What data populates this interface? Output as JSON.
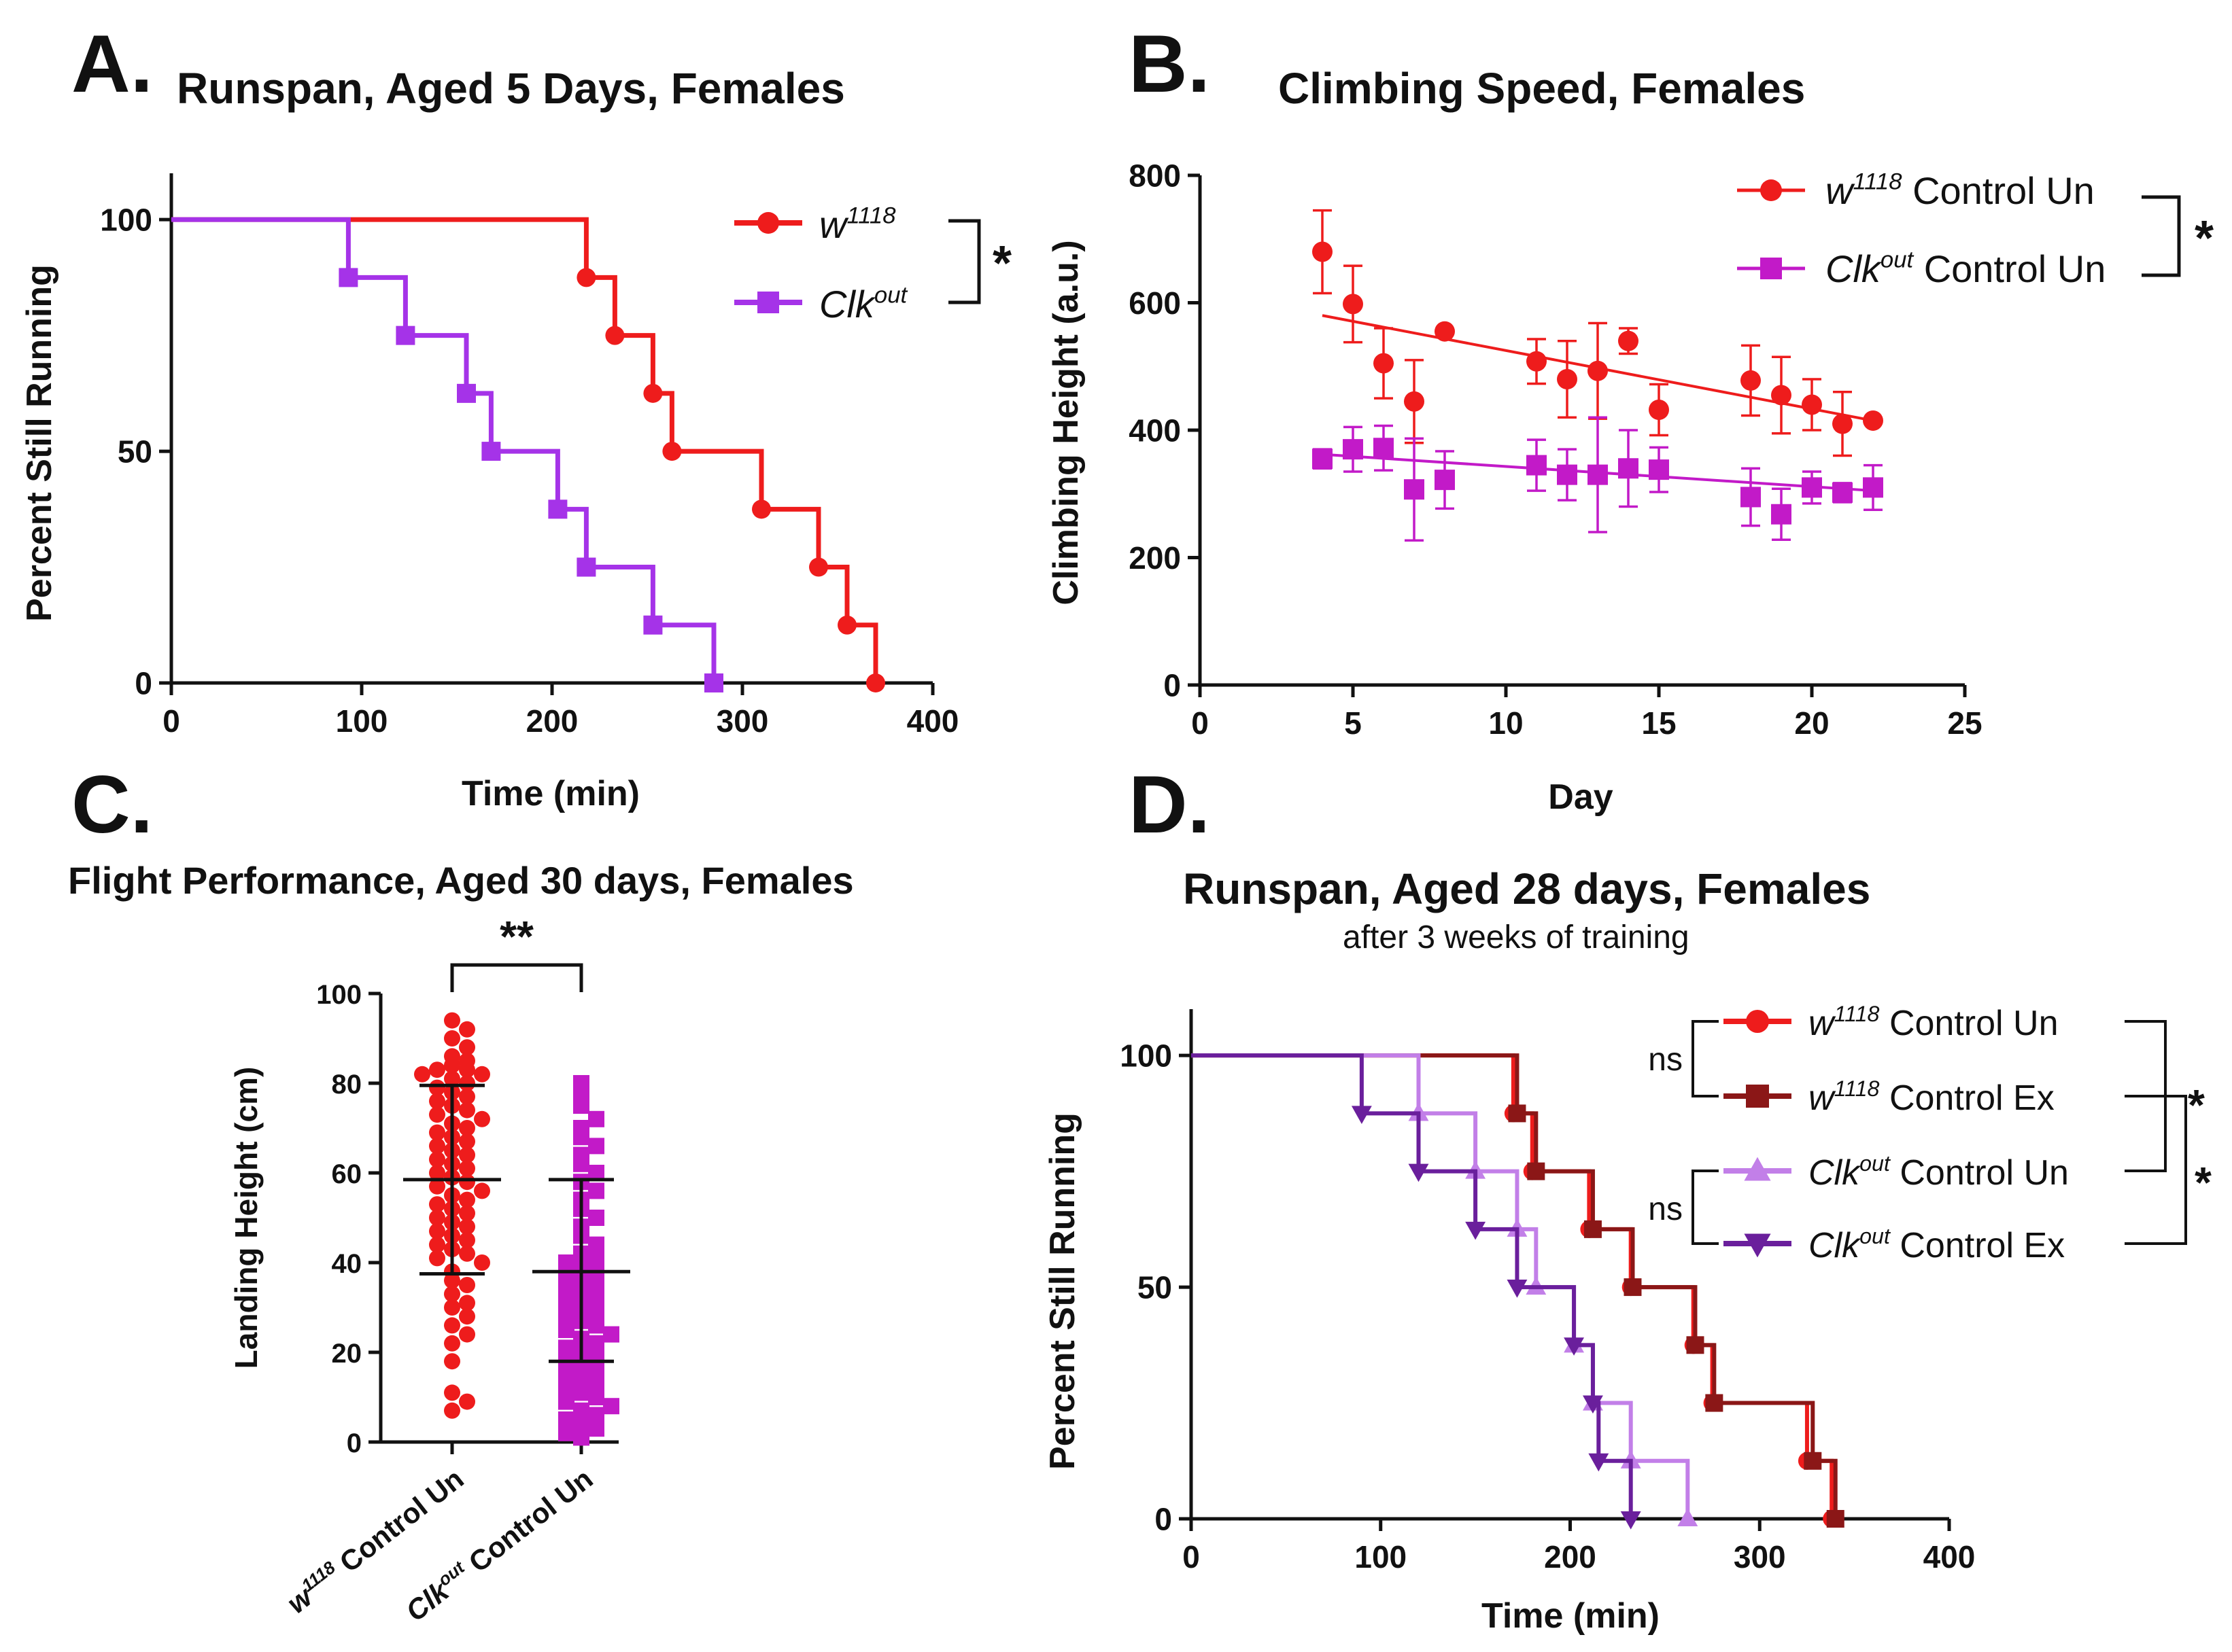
{
  "colors": {
    "red": "#ee1c1c",
    "purple": "#a533e8",
    "magenta": "#c21ac8",
    "dark_red": "#8b1717",
    "light_purple": "#c27fe8",
    "dark_purple": "#6a1f9c",
    "axis": "#111111"
  },
  "chart_data": [
    {
      "panel_label": "A.",
      "type": "line",
      "title": "Runspan, Aged 5 Days, Females",
      "xlabel": "Time (min)",
      "ylabel": "Percent Still Running",
      "xlim": [
        0,
        400
      ],
      "ylim": [
        0,
        110
      ],
      "xticks": [
        "0",
        "100",
        "200",
        "300",
        "400"
      ],
      "yticks": [
        "0",
        "50",
        "100"
      ],
      "legend_position": "top-right",
      "significance": "*",
      "series": [
        {
          "name_main": "w",
          "name_sup": "1118",
          "name_tail": "",
          "color": "#ee1c1c",
          "marker": "circle",
          "steps": [
            [
              0,
              100
            ],
            [
              218,
              87.5
            ],
            [
              233,
              75
            ],
            [
              253,
              62.5
            ],
            [
              263,
              50
            ],
            [
              310,
              37.5
            ],
            [
              340,
              25
            ],
            [
              355,
              12.5
            ],
            [
              370,
              0
            ]
          ]
        },
        {
          "name_main": "Clk",
          "name_sup": "out",
          "name_tail": "",
          "color": "#a533e8",
          "marker": "square",
          "steps": [
            [
              0,
              100
            ],
            [
              93,
              87.5
            ],
            [
              123,
              75
            ],
            [
              155,
              62.5
            ],
            [
              168,
              50
            ],
            [
              203,
              37.5
            ],
            [
              218,
              25
            ],
            [
              253,
              12.5
            ],
            [
              285,
              0
            ]
          ]
        }
      ]
    },
    {
      "panel_label": "B.",
      "type": "scatter",
      "title": "Climbing Speed, Females",
      "xlabel": "Day",
      "ylabel": "Climbing Height (a.u.)",
      "xlim": [
        0,
        25
      ],
      "ylim": [
        0,
        800
      ],
      "xticks": [
        "0",
        "5",
        "10",
        "15",
        "20",
        "25"
      ],
      "yticks": [
        "0",
        "200",
        "400",
        "600",
        "800"
      ],
      "legend_position": "top-right",
      "significance": "*",
      "series": [
        {
          "name_main": "w",
          "name_sup": "1118",
          "name_tail": " Control Un",
          "color": "#ee1c1c",
          "marker": "circle",
          "points": [
            [
              4,
              680,
              65
            ],
            [
              5,
              598,
              60
            ],
            [
              6,
              505,
              55
            ],
            [
              7,
              445,
              65
            ],
            [
              8,
              555,
              0
            ],
            [
              11,
              508,
              35
            ],
            [
              12,
              480,
              60
            ],
            [
              13,
              493,
              75
            ],
            [
              14,
              540,
              20
            ],
            [
              15,
              432,
              40
            ],
            [
              18,
              478,
              55
            ],
            [
              19,
              455,
              60
            ],
            [
              20,
              440,
              40
            ],
            [
              21,
              410,
              50
            ],
            [
              22,
              415,
              0
            ]
          ],
          "fit": [
            [
              4,
              580
            ],
            [
              22,
              415
            ]
          ]
        },
        {
          "name_main": "Clk",
          "name_sup": "out",
          "name_tail": " Control Un",
          "color": "#c21ac8",
          "marker": "square",
          "points": [
            [
              4,
              355,
              15
            ],
            [
              5,
              370,
              35
            ],
            [
              6,
              372,
              35
            ],
            [
              7,
              307,
              80
            ],
            [
              8,
              322,
              45
            ],
            [
              11,
              345,
              40
            ],
            [
              12,
              330,
              40
            ],
            [
              13,
              330,
              90
            ],
            [
              14,
              340,
              60
            ],
            [
              15,
              338,
              35
            ],
            [
              18,
              295,
              45
            ],
            [
              19,
              268,
              40
            ],
            [
              20,
              310,
              25
            ],
            [
              21,
              302,
              15
            ],
            [
              22,
              310,
              35
            ]
          ],
          "fit": [
            [
              4,
              362
            ],
            [
              22,
              305
            ]
          ]
        }
      ]
    },
    {
      "panel_label": "C.",
      "type": "scatter",
      "title": "Flight Performance, Aged 30 days, Females",
      "xlabel": "",
      "ylabel": "Landing Height (cm)",
      "ylim": [
        0,
        100
      ],
      "yticks": [
        "0",
        "20",
        "40",
        "60",
        "80",
        "100"
      ],
      "significance": "**",
      "groups": [
        {
          "name_main": "w",
          "name_sup": "1118",
          "name_tail": " Control Un",
          "color": "#ee1c1c",
          "marker": "circle",
          "mean": 58.5,
          "sd_low": 37.5,
          "sd_high": 79.5,
          "values": [
            94,
            92,
            90,
            88,
            86,
            85,
            84,
            83,
            83,
            82,
            82,
            81,
            80,
            79,
            78,
            77,
            76,
            75,
            74,
            73,
            72,
            71,
            70,
            69,
            68,
            67,
            66,
            65,
            64,
            63,
            62,
            61,
            60,
            59,
            58,
            57,
            56,
            55,
            54,
            53,
            52,
            51,
            50,
            49,
            48,
            47,
            46,
            45,
            44,
            43,
            42,
            41,
            40,
            38,
            36,
            35,
            33,
            31,
            30,
            28,
            26,
            24,
            22,
            18,
            11,
            9,
            7
          ]
        },
        {
          "name_main": "Clk",
          "name_sup": "out",
          "name_tail": " Control Un",
          "color": "#c21ac8",
          "marker": "square",
          "mean": 38,
          "sd_low": 18,
          "sd_high": 58.5,
          "values": [
            80,
            78,
            75,
            72,
            70,
            68,
            66,
            64,
            62,
            60,
            58,
            56,
            54,
            52,
            50,
            48,
            46,
            44,
            42,
            41,
            40,
            39,
            38,
            37,
            36,
            35,
            34,
            33,
            32,
            31,
            30,
            29,
            28,
            27,
            26,
            25,
            24,
            23,
            22,
            21,
            20,
            19,
            18,
            17,
            16,
            15,
            14,
            13,
            12,
            11,
            10,
            9,
            8,
            7,
            6,
            5,
            4,
            3,
            2,
            1
          ]
        }
      ]
    },
    {
      "panel_label": "D.",
      "type": "line",
      "title": "Runspan, Aged 28 days, Females",
      "subtitle": "after 3 weeks of training",
      "xlabel": "Time (min)",
      "ylabel": "Percent Still Running",
      "xlim": [
        0,
        400
      ],
      "ylim": [
        0,
        110
      ],
      "xticks": [
        "0",
        "100",
        "200",
        "300",
        "400"
      ],
      "yticks": [
        "0",
        "50",
        "100"
      ],
      "legend_position": "top-right",
      "annotations": [
        "ns",
        "ns",
        "*",
        "*"
      ],
      "series": [
        {
          "name_main": "w",
          "name_sup": "1118",
          "name_tail": " Control Un",
          "color": "#ee1c1c",
          "marker": "circle",
          "steps": [
            [
              0,
              100
            ],
            [
              170,
              87.5
            ],
            [
              180,
              75
            ],
            [
              210,
              62.5
            ],
            [
              232,
              50
            ],
            [
              265,
              37.5
            ],
            [
              275,
              25
            ],
            [
              325,
              12.5
            ],
            [
              338,
              0
            ]
          ]
        },
        {
          "name_main": "w",
          "name_sup": "1118",
          "name_tail": " Control Ex",
          "color": "#8b1717",
          "marker": "square",
          "steps": [
            [
              0,
              100
            ],
            [
              172,
              87.5
            ],
            [
              182,
              75
            ],
            [
              212,
              62.5
            ],
            [
              233,
              50
            ],
            [
              266,
              37.5
            ],
            [
              276,
              25
            ],
            [
              328,
              12.5
            ],
            [
              340,
              0
            ]
          ]
        },
        {
          "name_main": "Clk",
          "name_sup": "out",
          "name_tail": " Control Un",
          "color": "#c27fe8",
          "marker": "triangle-up",
          "steps": [
            [
              0,
              100
            ],
            [
              120,
              87.5
            ],
            [
              150,
              75
            ],
            [
              172,
              62.5
            ],
            [
              182,
              50
            ],
            [
              202,
              37.5
            ],
            [
              212,
              25
            ],
            [
              232,
              12.5
            ],
            [
              262,
              0
            ]
          ]
        },
        {
          "name_main": "Clk",
          "name_sup": "out",
          "name_tail": " Control Ex",
          "color": "#6a1f9c",
          "marker": "triangle-down",
          "steps": [
            [
              0,
              100
            ],
            [
              90,
              87.5
            ],
            [
              120,
              75
            ],
            [
              150,
              62.5
            ],
            [
              172,
              50
            ],
            [
              202,
              37.5
            ],
            [
              212,
              25
            ],
            [
              215,
              12.5
            ],
            [
              232,
              0
            ]
          ]
        }
      ]
    }
  ]
}
